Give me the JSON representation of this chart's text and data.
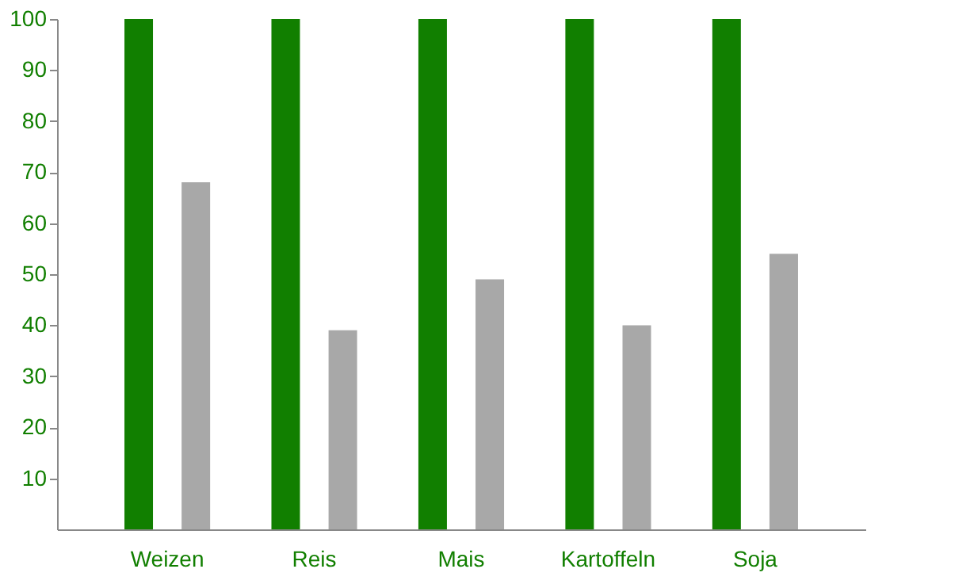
{
  "chart_data": {
    "type": "bar",
    "categories": [
      "Weizen",
      "Reis",
      "Mais",
      "Kartoffeln",
      "Soja"
    ],
    "series": [
      {
        "color": "#117f00",
        "values": [
          100,
          100,
          100,
          100,
          100
        ]
      },
      {
        "color": "#a8a8a8",
        "values": [
          68,
          39,
          49,
          40,
          54
        ]
      }
    ],
    "ylim": [
      0,
      100
    ],
    "yticks": [
      10,
      20,
      30,
      40,
      50,
      60,
      70,
      80,
      90,
      100
    ],
    "grid": false,
    "legend": false
  }
}
